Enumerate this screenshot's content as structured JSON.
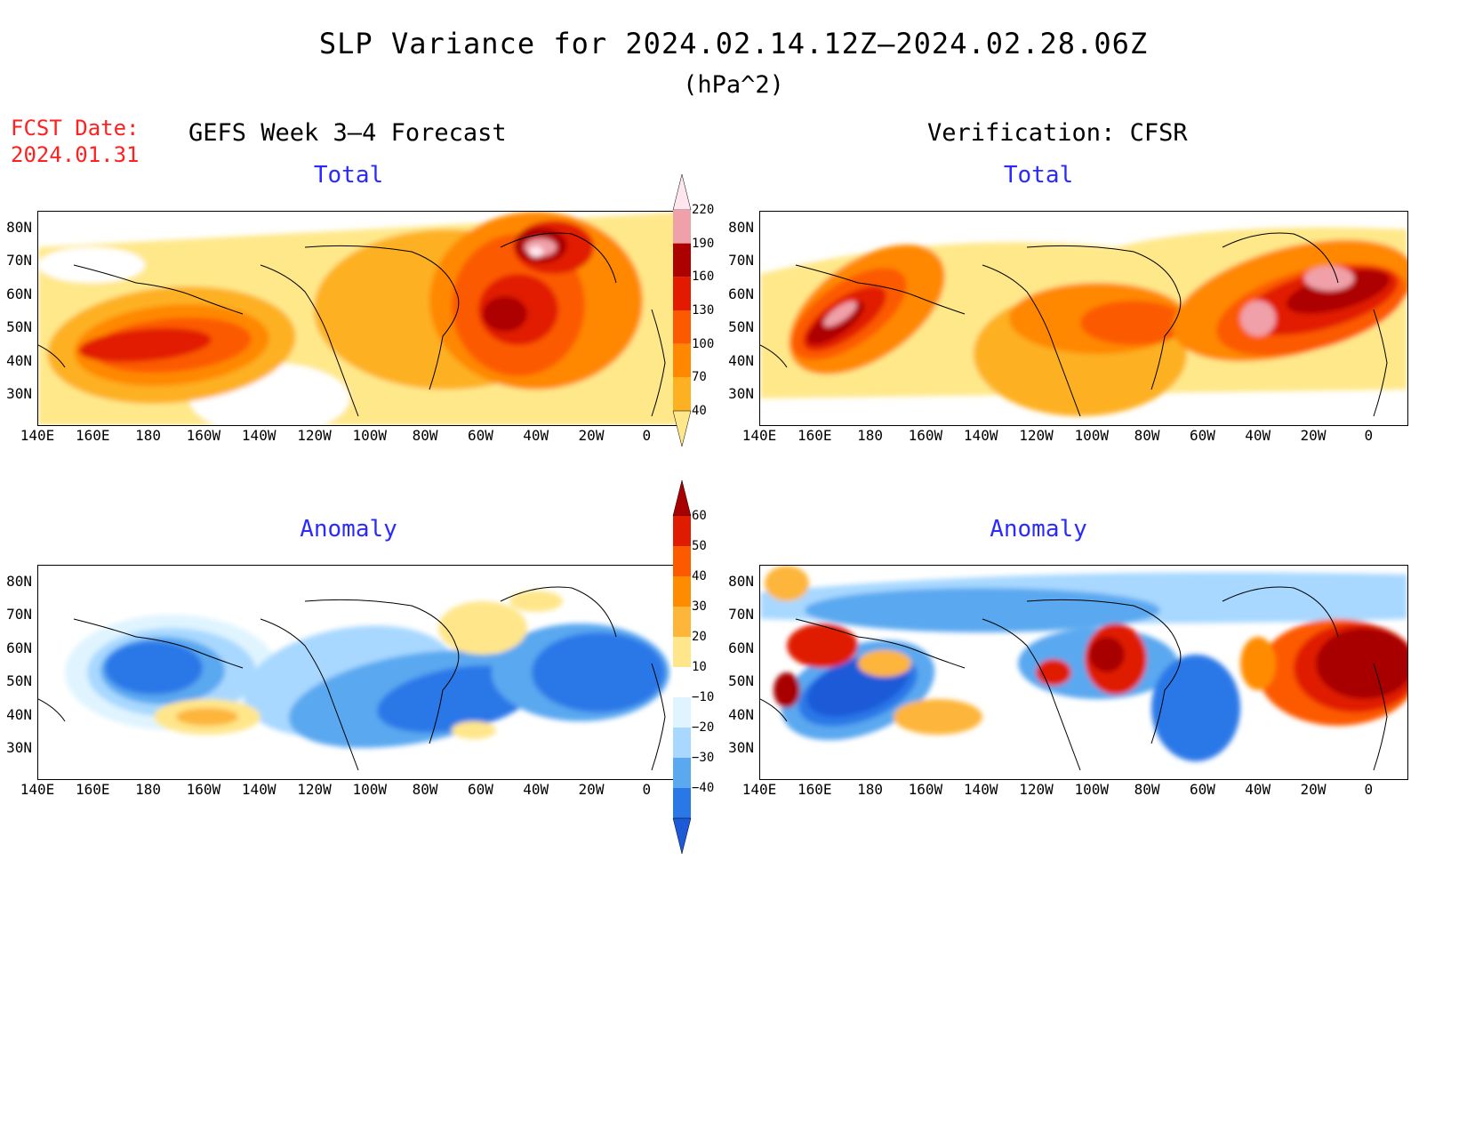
{
  "title": "SLP Variance for 2024.02.14.12Z–2024.02.28.06Z",
  "units": "(hPa^2)",
  "fcst_date": {
    "label": "FCST Date:",
    "value": "2024.01.31"
  },
  "left_header": "GEFS Week 3–4 Forecast",
  "right_header": "Verification: CFSR",
  "subtitles": {
    "total": "Total",
    "anomaly": "Anomaly"
  },
  "lat_labels": [
    "80N",
    "70N",
    "60N",
    "50N",
    "40N",
    "30N"
  ],
  "lon_labels": [
    "140E",
    "160E",
    "180",
    "160W",
    "140W",
    "120W",
    "100W",
    "80W",
    "60W",
    "40W",
    "20W",
    "0"
  ],
  "total_colorbar": {
    "levels": [
      "40",
      "70",
      "100",
      "130",
      "160",
      "190",
      "220"
    ],
    "colors": [
      "#ffe88a",
      "#fdb021",
      "#ff8800",
      "#fc5a00",
      "#e11a00",
      "#ad0000",
      "#f0a0a8",
      "#ffe6ee"
    ]
  },
  "anomaly_colorbar": {
    "levels": [
      "60",
      "50",
      "40",
      "30",
      "20",
      "10",
      "−10",
      "−20",
      "−30",
      "−40"
    ],
    "colors": [
      "#a80000",
      "#e01c00",
      "#fd5a00",
      "#ff8c00",
      "#fdb53a",
      "#ffe68a",
      "#ffffff",
      "#dff4ff",
      "#a8d8ff",
      "#5aa8f0",
      "#2a78e8",
      "#1d5ad8"
    ]
  },
  "colors": {
    "title": "#000000",
    "fcst_date": "#ff2020",
    "subtitle": "#2a2aff"
  }
}
